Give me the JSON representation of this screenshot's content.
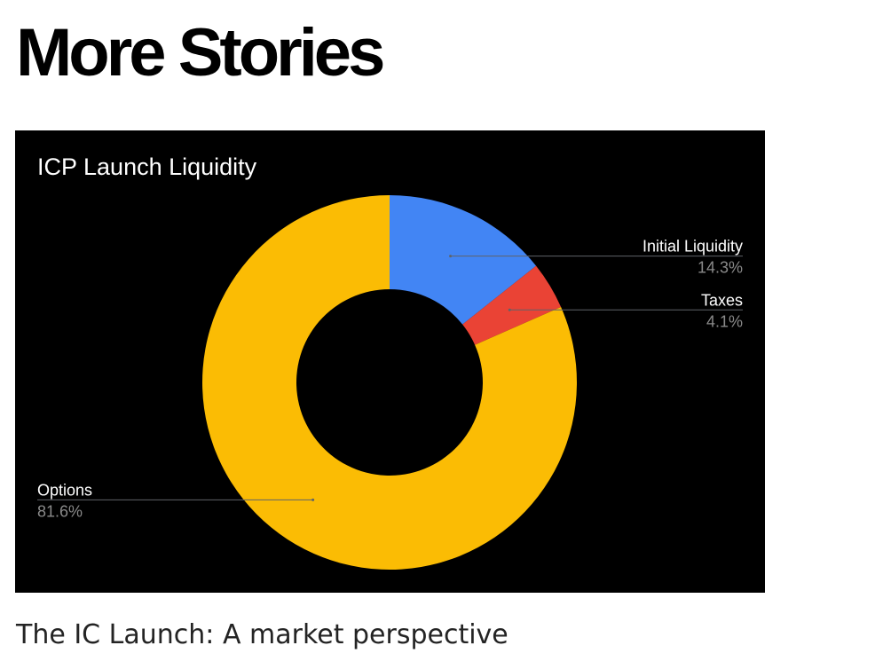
{
  "section": {
    "title": "More Stories"
  },
  "story": {
    "title": "The IC Launch: A market perspective"
  },
  "chart_data": {
    "type": "pie",
    "donut": true,
    "title": "ICP Launch Liquidity",
    "background": "#000000",
    "slices": [
      {
        "label": "Initial Liquidity",
        "value": 14.3,
        "display": "14.3%",
        "color": "#4285F4"
      },
      {
        "label": "Taxes",
        "value": 4.1,
        "display": "4.1%",
        "color": "#EA4335"
      },
      {
        "label": "Options",
        "value": 81.6,
        "display": "81.6%",
        "color": "#FBBC04"
      }
    ],
    "legend": "labels with leader lines"
  }
}
